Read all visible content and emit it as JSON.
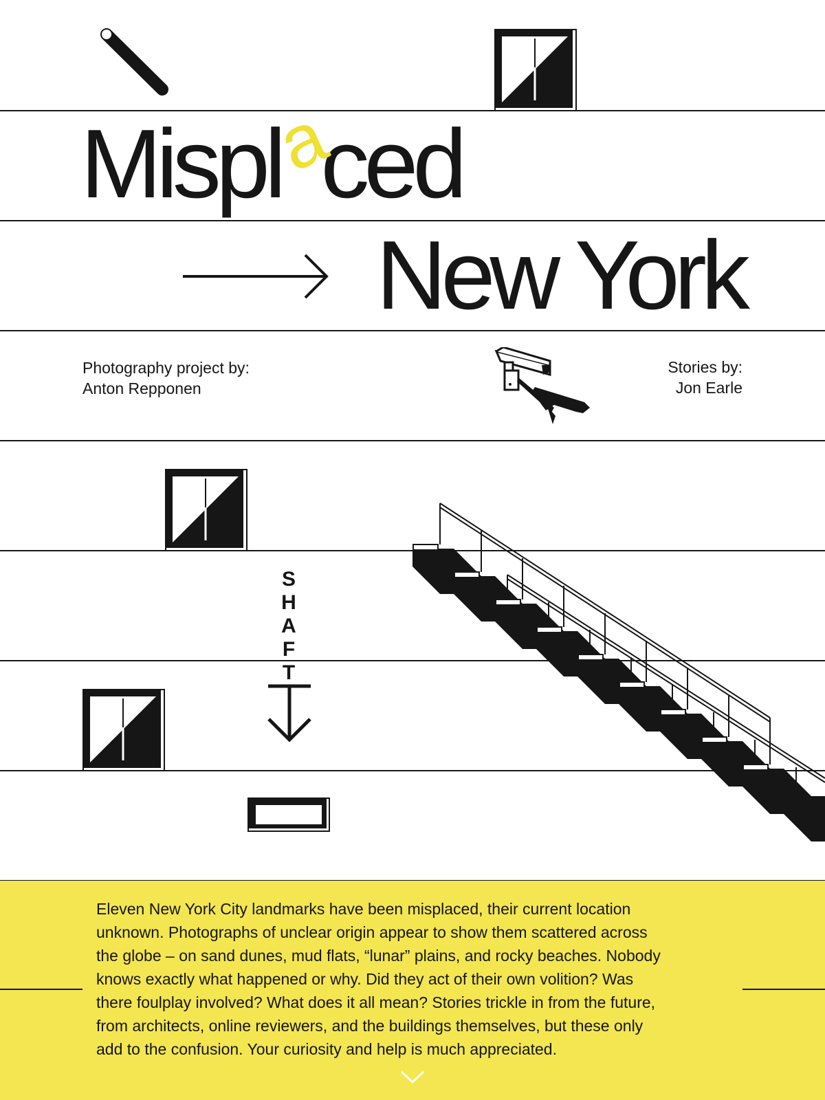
{
  "title": {
    "part1": "Mispl",
    "highlight_letter": "a",
    "part2": "ced",
    "line2": "New York",
    "accent_color": "#efe031"
  },
  "credits": {
    "photography_label": "Photography project by:",
    "photographer": "Anton Repponen",
    "stories_label": "Stories by:",
    "author": "Jon Earle"
  },
  "shaft_letters": [
    "S",
    "H",
    "A",
    "F",
    "T"
  ],
  "intro": {
    "background_color": "#f3e651",
    "text": "Eleven New York City landmarks have been misplaced, their current location unknown. Photographs of unclear origin appear to show them scattered across the globe – on sand dunes, mud flats, “lunar” plains, and rocky beaches. Nobody knows exactly what happened or why. Did they act of their own volition? Was there foulplay involved? What does it all mean? Stories trickle in from the future, from architects, online reviewers, and the buildings themselves, but these only add to the confusion. Your curiosity and help is much appreciated."
  },
  "icons": {
    "pipe": "pipe-icon",
    "windows": "window-icon",
    "camera": "security-camera-icon",
    "arrow_right": "arrow-right-icon",
    "arrow_down": "arrow-down-icon",
    "stairs": "staircase-illustration",
    "vent": "vent-icon",
    "scroll": "chevron-down-icon"
  }
}
